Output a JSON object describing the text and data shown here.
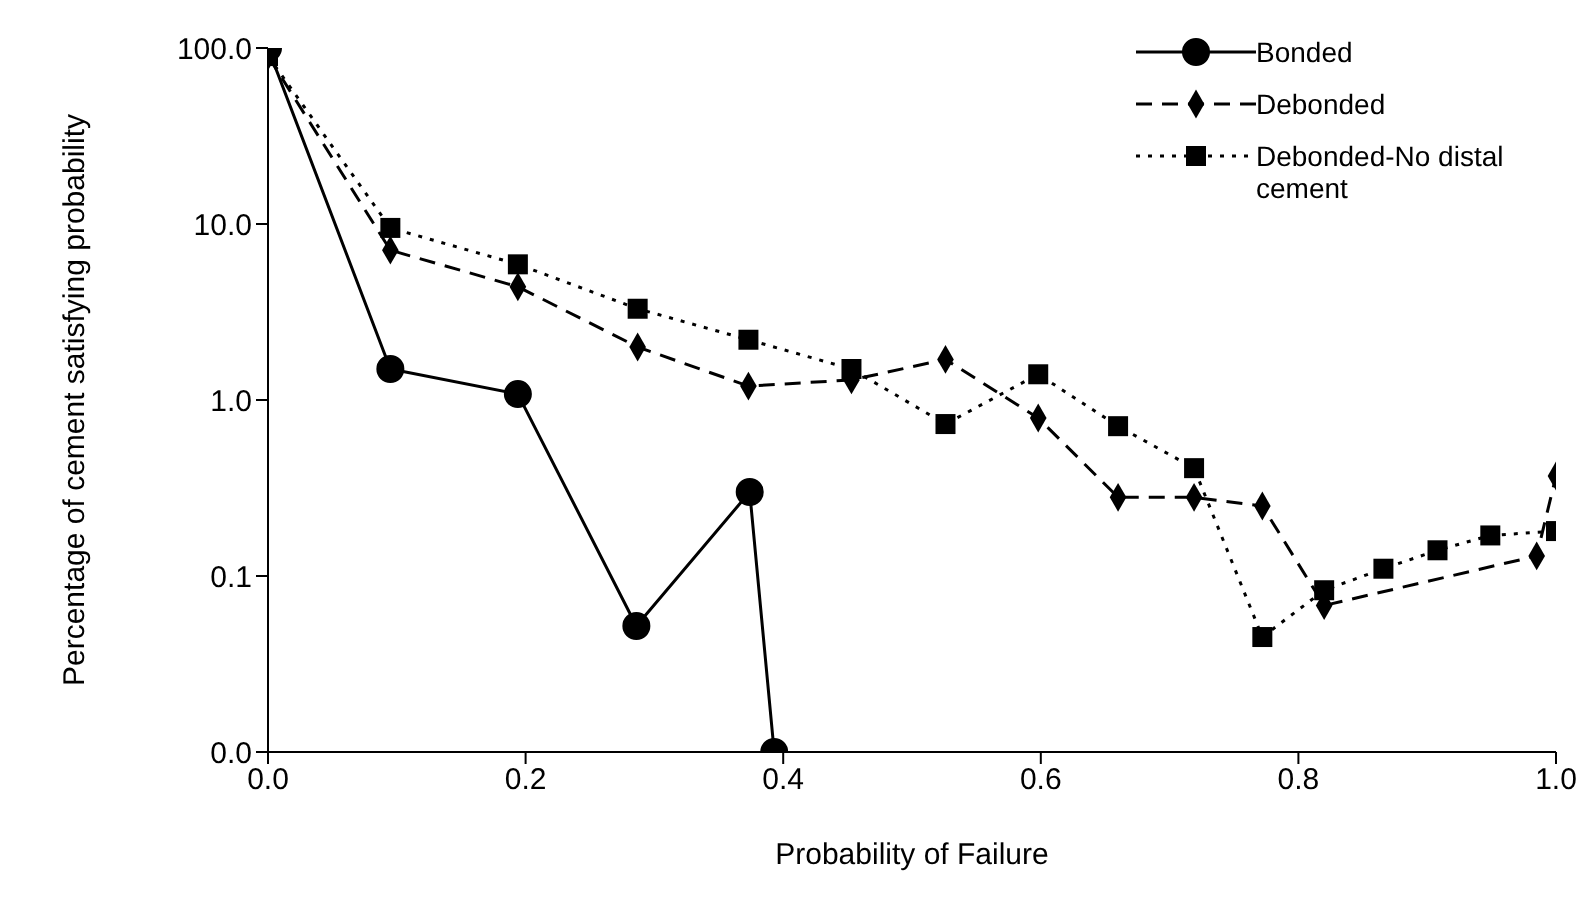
{
  "chart_data": {
    "type": "line",
    "xlabel": "Probability of Failure",
    "ylabel": "Percentage of cement satisfying probability",
    "log": "y",
    "xlim": [
      0,
      1
    ],
    "xticks": [
      {
        "value": 0,
        "label": "0.0"
      },
      0.2,
      0.4,
      0.6,
      0.8,
      {
        "value": 1,
        "label": "1.0"
      }
    ],
    "ylim": [
      0.01,
      100
    ],
    "yticks": [
      {
        "value": 0.01,
        "label": "0.0"
      },
      0.1,
      {
        "value": 1,
        "label": "1.0"
      },
      {
        "value": 10,
        "label": "10.0"
      },
      {
        "value": 100,
        "label": "100.0"
      }
    ],
    "grid": false,
    "legend": "top right",
    "series": [
      {
        "name": "Bonded",
        "color": "#000000",
        "marker": "circle",
        "line_style": "solid",
        "x": [
          0,
          0.095,
          0.194,
          0.286,
          0.374,
          0.393
        ],
        "values": [
          100,
          1.5,
          1.08,
          0.052,
          0.3,
          0.01
        ]
      },
      {
        "name": "Debonded",
        "color": "#000000",
        "marker": "diamond",
        "line_style": "dashed",
        "x": [
          0,
          0.095,
          0.194,
          0.287,
          0.373,
          0.453,
          0.526,
          0.598,
          0.66,
          0.719,
          0.772,
          0.82,
          0.866,
          0.908,
          0.949,
          0.985,
          1.0
        ],
        "values": [
          90,
          7.1,
          4.4,
          2.0,
          1.2,
          1.3,
          1.7,
          0.79,
          0.28,
          0.28,
          0.25,
          0.068,
          null,
          null,
          null,
          0.13,
          0.37
        ]
      },
      {
        "name": "Debonded-No distal cement",
        "color": "#000000",
        "marker": "square",
        "line_style": "dotted",
        "x": [
          0,
          0.095,
          0.194,
          0.287,
          0.373,
          0.453,
          0.526,
          0.598,
          0.66,
          0.719,
          0.772,
          0.82,
          0.866,
          0.908,
          0.949,
          1.0
        ],
        "values": [
          90,
          9.5,
          5.9,
          3.3,
          2.2,
          1.5,
          0.73,
          1.4,
          0.71,
          0.41,
          0.045,
          0.083,
          0.11,
          0.14,
          0.17,
          0.18
        ]
      }
    ]
  }
}
